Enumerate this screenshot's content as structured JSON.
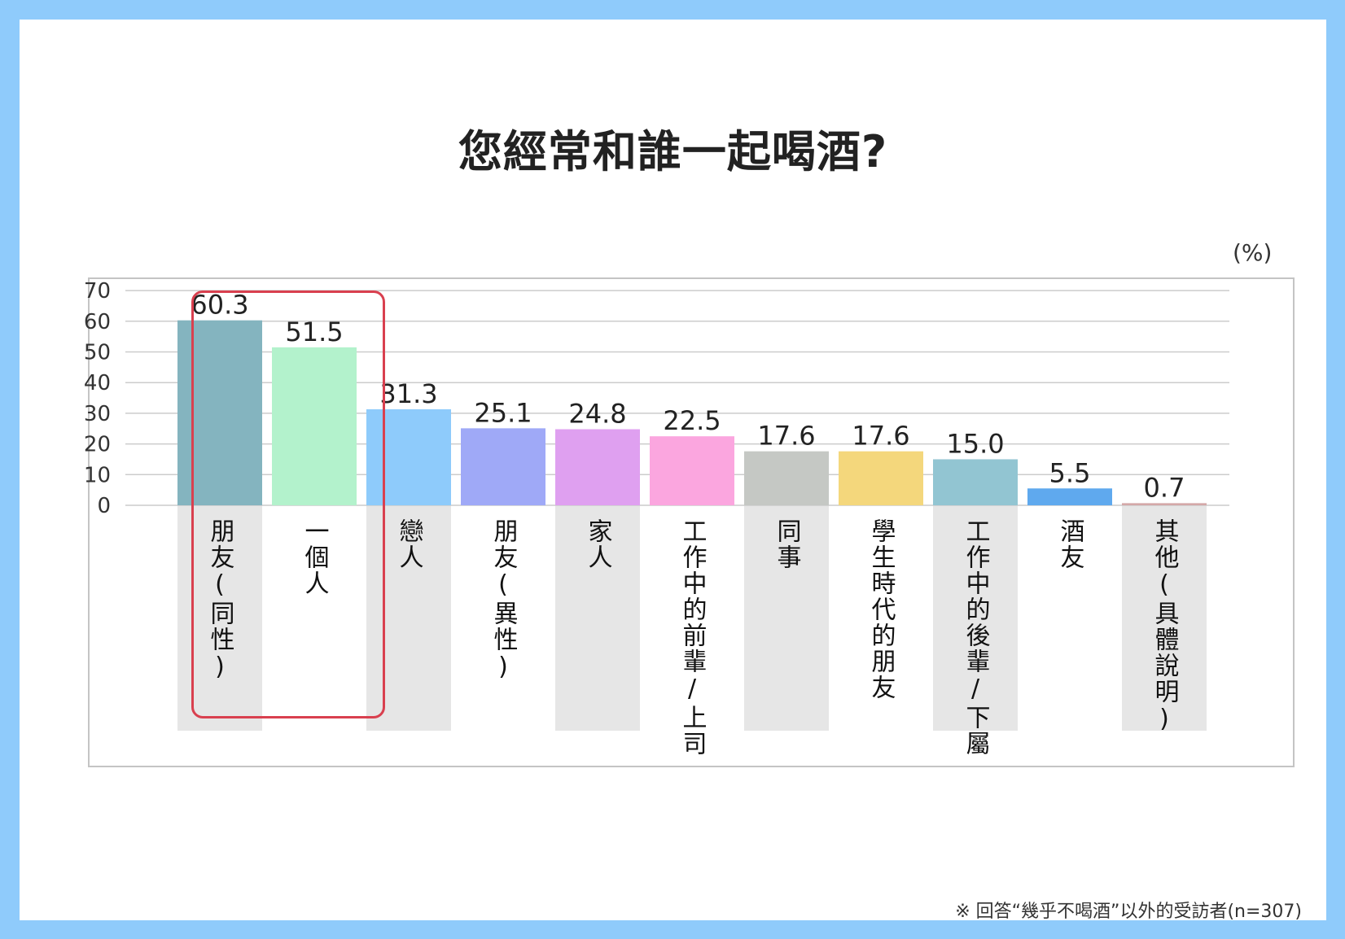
{
  "title": "您經常和誰一起喝酒?",
  "unit": "(%)",
  "footnote": "※ 回答“幾乎不喝酒”以外的受訪者(n=307)",
  "colors": {
    "background_border": "#8fcbfb",
    "highlight_border": "#d9404f",
    "label_band": "#e6e6e6",
    "grid": "#cccccc"
  },
  "chart_data": {
    "type": "bar",
    "title": "您經常和誰一起喝酒?",
    "ylabel": "",
    "unit": "(%)",
    "ylim": [
      0,
      70
    ],
    "yticks": [
      0,
      10,
      20,
      30,
      40,
      50,
      60,
      70
    ],
    "grid": true,
    "categories": [
      "朋友(同性)",
      "一個人",
      "戀人",
      "朋友(異性)",
      "家人",
      "工作中的前輩/上司",
      "同事",
      "學生時代的朋友",
      "工作中的後輩/下屬",
      "酒友",
      "其他(具體說明)"
    ],
    "values": [
      60.3,
      51.5,
      31.3,
      25.1,
      24.8,
      22.5,
      17.6,
      17.6,
      15.0,
      5.5,
      0.7
    ],
    "value_labels": [
      "60.3",
      "51.5",
      "31.3",
      "25.1",
      "24.8",
      "22.5",
      "17.6",
      "17.6",
      "15.0",
      "5.5",
      "0.7"
    ],
    "bar_colors": [
      "#84b4bf",
      "#b3f2cc",
      "#8ecbfb",
      "#9fa9f7",
      "#dfa0f0",
      "#fba6df",
      "#c5c8c4",
      "#f4d77c",
      "#92c5d2",
      "#5fa9ee",
      "#d4a8a8"
    ],
    "highlighted": [
      "朋友(同性)",
      "一個人"
    ]
  }
}
